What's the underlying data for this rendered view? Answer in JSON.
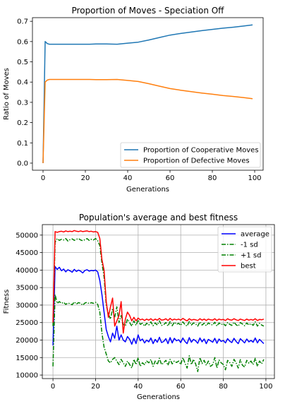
{
  "chart_data": [
    {
      "type": "line",
      "title": "Proportion of Moves - Speciation Off",
      "xlabel": "Generations",
      "ylabel": "Ratio of Moves",
      "xlim": [
        -5,
        104
      ],
      "ylim": [
        -0.035,
        0.718
      ],
      "xticks": [
        0,
        20,
        40,
        60,
        80,
        100
      ],
      "yticks": [
        0.0,
        0.1,
        0.2,
        0.3,
        0.4,
        0.5,
        0.6,
        0.7
      ],
      "xtick_labels": [
        "0",
        "20",
        "40",
        "60",
        "80",
        "100"
      ],
      "ytick_labels": [
        "0.0",
        "0.1",
        "0.2",
        "0.3",
        "0.4",
        "0.5",
        "0.6",
        "0.7"
      ],
      "grid": false,
      "legend_position": "lower-right",
      "series": [
        {
          "name": "Proportion of Cooperative Moves",
          "color": "#1f77b4",
          "style": "solid",
          "x": [
            0,
            1,
            2,
            3,
            5,
            10,
            15,
            20,
            22,
            25,
            30,
            35,
            40,
            45,
            50,
            55,
            60,
            65,
            70,
            75,
            80,
            85,
            90,
            95,
            99
          ],
          "y": [
            0.0,
            0.6,
            0.59,
            0.587,
            0.587,
            0.587,
            0.587,
            0.587,
            0.587,
            0.588,
            0.588,
            0.587,
            0.592,
            0.597,
            0.608,
            0.62,
            0.632,
            0.64,
            0.647,
            0.654,
            0.66,
            0.666,
            0.671,
            0.677,
            0.682
          ]
        },
        {
          "name": "Proportion of Defective Moves",
          "color": "#ff7f0e",
          "style": "solid",
          "x": [
            0,
            1,
            2,
            3,
            5,
            10,
            15,
            20,
            22,
            25,
            30,
            35,
            40,
            45,
            50,
            55,
            60,
            65,
            70,
            75,
            80,
            85,
            90,
            95,
            99
          ],
          "y": [
            0.0,
            0.4,
            0.41,
            0.413,
            0.413,
            0.413,
            0.413,
            0.413,
            0.413,
            0.412,
            0.412,
            0.413,
            0.408,
            0.403,
            0.392,
            0.38,
            0.368,
            0.36,
            0.353,
            0.346,
            0.34,
            0.334,
            0.329,
            0.323,
            0.318
          ]
        }
      ]
    },
    {
      "type": "line",
      "title": "Population's average and best fitness",
      "xlabel": "Generations",
      "ylabel": "Fitness",
      "xlim": [
        -5,
        104
      ],
      "ylim": [
        9000,
        53000
      ],
      "xticks": [
        0,
        20,
        40,
        60,
        80,
        100
      ],
      "yticks": [
        10000,
        15000,
        20000,
        25000,
        30000,
        35000,
        40000,
        45000,
        50000
      ],
      "xtick_labels": [
        "0",
        "20",
        "40",
        "60",
        "80",
        "100"
      ],
      "ytick_labels": [
        "10000",
        "15000",
        "20000",
        "25000",
        "30000",
        "35000",
        "40000",
        "45000",
        "50000"
      ],
      "grid": true,
      "legend_position": "upper-right",
      "x": [
        0,
        1,
        2,
        3,
        4,
        5,
        6,
        7,
        8,
        9,
        10,
        11,
        12,
        13,
        14,
        15,
        16,
        17,
        18,
        19,
        20,
        21,
        22,
        23,
        24,
        25,
        26,
        27,
        28,
        29,
        30,
        31,
        32,
        33,
        34,
        35,
        36,
        37,
        38,
        39,
        40,
        41,
        42,
        43,
        44,
        45,
        46,
        47,
        48,
        49,
        50,
        51,
        52,
        53,
        54,
        55,
        56,
        57,
        58,
        59,
        60,
        61,
        62,
        63,
        64,
        65,
        66,
        67,
        68,
        69,
        70,
        71,
        72,
        73,
        74,
        75,
        76,
        77,
        78,
        79,
        80,
        81,
        82,
        83,
        84,
        85,
        86,
        87,
        88,
        89,
        90,
        91,
        92,
        93,
        94,
        95,
        96,
        97,
        98,
        99
      ],
      "series": [
        {
          "name": "average",
          "color": "#0000ff",
          "style": "solid",
          "values": [
            18500,
            41000,
            40200,
            40800,
            39800,
            40300,
            39500,
            40100,
            39800,
            39400,
            40200,
            39600,
            40000,
            39700,
            39200,
            39900,
            40100,
            39700,
            39900,
            39800,
            40000,
            39500,
            37000,
            33000,
            28000,
            23000,
            21000,
            19500,
            22000,
            20500,
            24000,
            20000,
            21500,
            20000,
            19500,
            21000,
            20200,
            18800,
            20500,
            19000,
            21500,
            19800,
            20300,
            19200,
            20000,
            19500,
            20600,
            19000,
            20200,
            19400,
            20800,
            19300,
            19600,
            20400,
            19000,
            20700,
            19200,
            20500,
            19800,
            20100,
            19300,
            20600,
            19600,
            19000,
            20700,
            19400,
            20200,
            19800,
            19100,
            20600,
            19500,
            20300,
            19000,
            20200,
            19800,
            19400,
            20500,
            19100,
            20300,
            19600,
            19900,
            19200,
            20400,
            19700,
            19300,
            20500,
            19600,
            19000,
            20400,
            19800,
            19200,
            20300,
            19500,
            19900,
            19400,
            20600,
            19200,
            20200,
            19600,
            19000
          ]
        },
        {
          "name": "-1 sd",
          "color": "#008000",
          "style": "dashdot",
          "values": [
            12500,
            33000,
            30500,
            31000,
            30500,
            30800,
            30200,
            30600,
            30400,
            30100,
            30900,
            30300,
            30700,
            30500,
            30000,
            30600,
            30800,
            30400,
            30700,
            30500,
            30800,
            30200,
            28000,
            22000,
            18000,
            16000,
            14000,
            13500,
            14500,
            15000,
            14000,
            13000,
            14500,
            13500,
            12500,
            14000,
            13000,
            12000,
            14500,
            13000,
            15000,
            12500,
            13500,
            13000,
            14000,
            13500,
            14500,
            12500,
            14000,
            13000,
            14800,
            13000,
            13500,
            14200,
            12800,
            14500,
            13200,
            14000,
            13600,
            14000,
            13000,
            15000,
            13400,
            12000,
            15500,
            13000,
            14500,
            13200,
            11000,
            15000,
            13300,
            14200,
            12800,
            14000,
            12500,
            13000,
            15000,
            12000,
            14300,
            13500,
            13000,
            11500,
            14200,
            13600,
            12500,
            14500,
            13500,
            12000,
            14400,
            12800,
            12300,
            14200,
            13400,
            14000,
            13000,
            14800,
            12500,
            14000,
            13200,
            14500
          ]
        },
        {
          "name": "+1 sd",
          "color": "#008000",
          "style": "dashdot",
          "values": [
            24000,
            48000,
            49000,
            48500,
            48800,
            48600,
            49000,
            48300,
            48700,
            48900,
            48500,
            48800,
            49000,
            48600,
            48400,
            48700,
            49000,
            48500,
            48800,
            48600,
            49000,
            48400,
            47000,
            42000,
            38000,
            30000,
            27500,
            26000,
            29000,
            26500,
            29500,
            25000,
            27000,
            24500,
            24000,
            26000,
            25000,
            24000,
            25500,
            24200,
            25800,
            24500,
            24800,
            24000,
            24800,
            24300,
            25200,
            24100,
            24900,
            24300,
            25500,
            24200,
            24400,
            25000,
            24000,
            25300,
            24100,
            25100,
            24500,
            24800,
            24200,
            25200,
            24400,
            24000,
            25300,
            24300,
            24900,
            24600,
            24000,
            25200,
            24300,
            24800,
            24100,
            24900,
            24500,
            24300,
            25100,
            24000,
            24900,
            24400,
            24700,
            24100,
            25000,
            24500,
            24200,
            25100,
            24400,
            24000,
            25000,
            24600,
            24100,
            24900,
            24300,
            24700,
            24200,
            25200,
            24000,
            24800,
            24300,
            24000
          ]
        },
        {
          "name": "best",
          "color": "#ff0000",
          "style": "solid",
          "values": [
            25000,
            51000,
            50800,
            51000,
            51100,
            50900,
            51200,
            51000,
            51100,
            51000,
            51300,
            51100,
            51000,
            51200,
            51000,
            51100,
            51200,
            51000,
            51100,
            50900,
            51000,
            50800,
            49000,
            43000,
            40000,
            31000,
            26500,
            29500,
            32000,
            24000,
            25500,
            27000,
            31000,
            22000,
            26000,
            28000,
            27000,
            25500,
            26500,
            25500,
            26300,
            25800,
            26000,
            25600,
            26000,
            25700,
            26100,
            25600,
            26000,
            25700,
            26200,
            25700,
            25800,
            26100,
            25600,
            26200,
            25700,
            26000,
            25800,
            26000,
            25700,
            26200,
            25800,
            25500,
            26100,
            25700,
            25900,
            25800,
            25600,
            26100,
            25700,
            26000,
            25600,
            26000,
            25800,
            25700,
            26100,
            25600,
            26000,
            25800,
            25900,
            25600,
            26100,
            25800,
            25700,
            26100,
            25800,
            25600,
            26000,
            25800,
            25600,
            26000,
            25700,
            25900,
            25700,
            26100,
            25600,
            25900,
            25800,
            26000
          ]
        }
      ]
    }
  ]
}
